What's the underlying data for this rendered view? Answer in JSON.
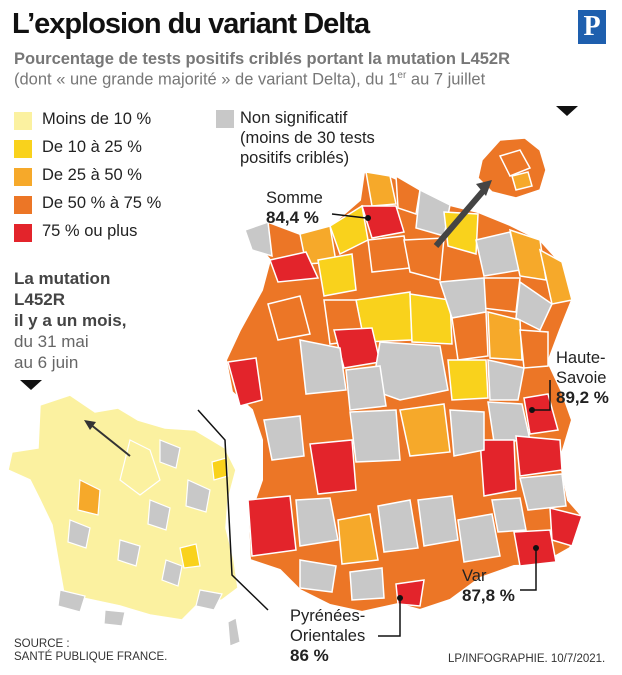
{
  "title": "L’explosion du variant Delta",
  "logo": "P",
  "subtitle": {
    "line1": "Pourcentage de tests positifs criblés portant la mutation L452R",
    "line2_pre": "(dont « une grande majorité » de variant Delta), du 1",
    "line2_sup": "er",
    "line2_post": " au 7 juillet"
  },
  "legend": [
    {
      "label": "Moins de 10 %",
      "color": "#fbf1a0"
    },
    {
      "label": "De 10 à 25 %",
      "color": "#f9d21c"
    },
    {
      "label": "De 25 à 50 %",
      "color": "#f6a92a"
    },
    {
      "label": "De 50 % à 75 %",
      "color": "#ec7626"
    },
    {
      "label": "75 % ou plus",
      "color": "#e3242b"
    }
  ],
  "non_significant": {
    "line1": "Non significatif",
    "line2": "(moins de 30 tests",
    "line3": "positifs criblés)",
    "color": "#c8c8c8"
  },
  "month_ago": {
    "line1": "La mutation",
    "line2": "L452R",
    "line3": "il y a un mois,",
    "line4": "du 31 mai",
    "line5": "au 6 juin"
  },
  "callouts": {
    "somme": {
      "name": "Somme",
      "value": "84,4 %"
    },
    "haute_savoie": {
      "name1": "Haute-",
      "name2": "Savoie",
      "value": "89,2 %"
    },
    "var": {
      "name": "Var",
      "value": "87,8 %"
    },
    "pyrenees": {
      "name1": "Pyrénées-",
      "name2": "Orientales",
      "value": "86 %"
    }
  },
  "source": {
    "line1": "SOURCE :",
    "line2": "SANTÉ PUBLIQUE FRANCE."
  },
  "credit": "LP/INFOGRAPHIE.   10/7/2021."
}
